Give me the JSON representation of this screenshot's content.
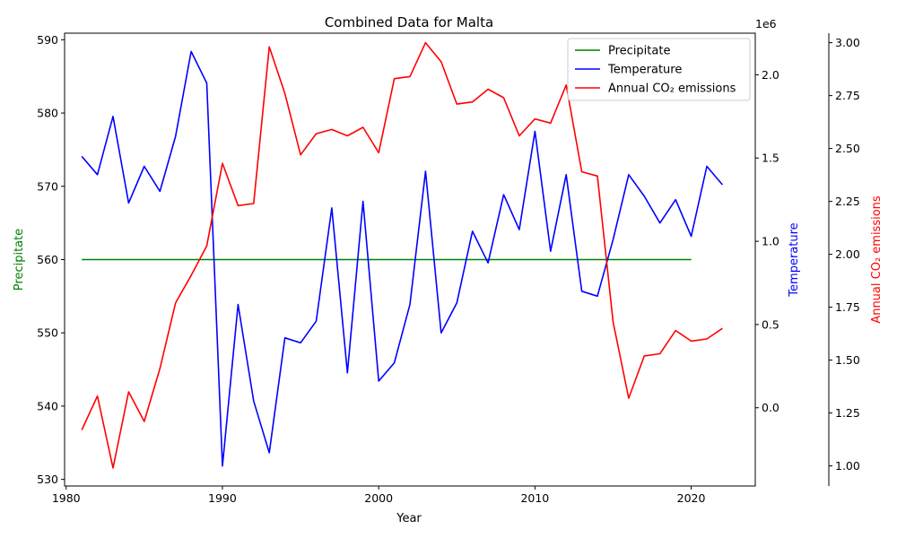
{
  "chart_data": {
    "type": "line",
    "title": "Combined Data for Malta",
    "xlabel": "Year",
    "xlim": [
      1979.9,
      2024.1
    ],
    "xticks": [
      1980,
      1990,
      2000,
      2010,
      2020
    ],
    "axes": [
      {
        "id": "left",
        "label": "Precipitate",
        "color": "#008000",
        "ylim": [
          529.1,
          590.9
        ],
        "ticks": [
          530,
          540,
          550,
          560,
          570,
          580,
          590
        ],
        "tick_labels": [
          "530",
          "540",
          "550",
          "560",
          "570",
          "580",
          "590"
        ],
        "offset_text": ""
      },
      {
        "id": "right1",
        "label": "Temperature",
        "color": "#0000ff",
        "ylim": [
          -0.47,
          2.25
        ],
        "ticks": [
          0.0,
          0.5,
          1.0,
          1.5,
          2.0
        ],
        "tick_labels": [
          "0.0",
          "0.5",
          "1.0",
          "1.5",
          "2.0"
        ],
        "offset_text": "1e6"
      },
      {
        "id": "right2",
        "label": "Annual CO₂ emissions",
        "color": "#ff0000",
        "ylim": [
          0.905,
          3.045
        ],
        "ticks": [
          1.0,
          1.25,
          1.5,
          1.75,
          2.0,
          2.25,
          2.5,
          2.75,
          3.0
        ],
        "tick_labels": [
          "1.00",
          "1.25",
          "1.50",
          "1.75",
          "2.00",
          "2.25",
          "2.50",
          "2.75",
          "3.00"
        ],
        "offset_text": ""
      }
    ],
    "legend": {
      "position": "top-right"
    },
    "grid": false,
    "series": [
      {
        "name": "Precipitate",
        "axis": "left",
        "color": "#008000",
        "x": [
          1981,
          2020
        ],
        "values": [
          560,
          560
        ]
      },
      {
        "name": "Temperature",
        "axis": "right1",
        "color": "#0000ff",
        "x": [
          1981,
          1982,
          1983,
          1984,
          1985,
          1986,
          1987,
          1988,
          1989,
          1990,
          1991,
          1992,
          1993,
          1994,
          1995,
          1996,
          1997,
          1998,
          1999,
          2000,
          2001,
          2002,
          2003,
          2004,
          2005,
          2006,
          2007,
          2008,
          2009,
          2010,
          2011,
          2012,
          2013,
          2014,
          2015,
          2016,
          2017,
          2018,
          2019,
          2020,
          2021,
          2022
        ],
        "values": [
          1.51,
          1.4,
          1.75,
          1.23,
          1.45,
          1.3,
          1.63,
          2.14,
          1.95,
          -0.35,
          0.62,
          0.04,
          -0.27,
          0.42,
          0.39,
          0.52,
          1.2,
          0.21,
          1.24,
          0.16,
          0.27,
          0.62,
          1.42,
          0.45,
          0.63,
          1.06,
          0.87,
          1.28,
          1.07,
          1.66,
          0.94,
          1.4,
          0.7,
          0.67,
          1.01,
          1.4,
          1.27,
          1.11,
          1.25,
          1.03,
          1.45,
          1.34
        ]
      },
      {
        "name": "Annual CO₂ emissions",
        "axis": "right2",
        "color": "#ff0000",
        "x": [
          1981,
          1982,
          1983,
          1984,
          1985,
          1986,
          1987,
          1988,
          1989,
          1990,
          1991,
          1992,
          1993,
          1994,
          1995,
          1996,
          1997,
          1998,
          1999,
          2000,
          2001,
          2002,
          2003,
          2004,
          2005,
          2006,
          2007,
          2008,
          2009,
          2010,
          2011,
          2012,
          2013,
          2014,
          2015,
          2016,
          2017,
          2018,
          2019,
          2020,
          2021,
          2022
        ],
        "values": [
          1.17,
          1.33,
          0.99,
          1.35,
          1.21,
          1.46,
          1.77,
          1.9,
          2.04,
          2.43,
          2.23,
          2.24,
          2.98,
          2.76,
          2.47,
          2.57,
          2.59,
          2.56,
          2.6,
          2.48,
          2.83,
          2.84,
          3.0,
          2.91,
          2.71,
          2.72,
          2.78,
          2.74,
          2.56,
          2.64,
          2.62,
          2.8,
          2.39,
          2.37,
          1.68,
          1.32,
          1.52,
          1.53,
          1.64,
          1.59,
          1.6,
          1.65
        ]
      }
    ]
  }
}
